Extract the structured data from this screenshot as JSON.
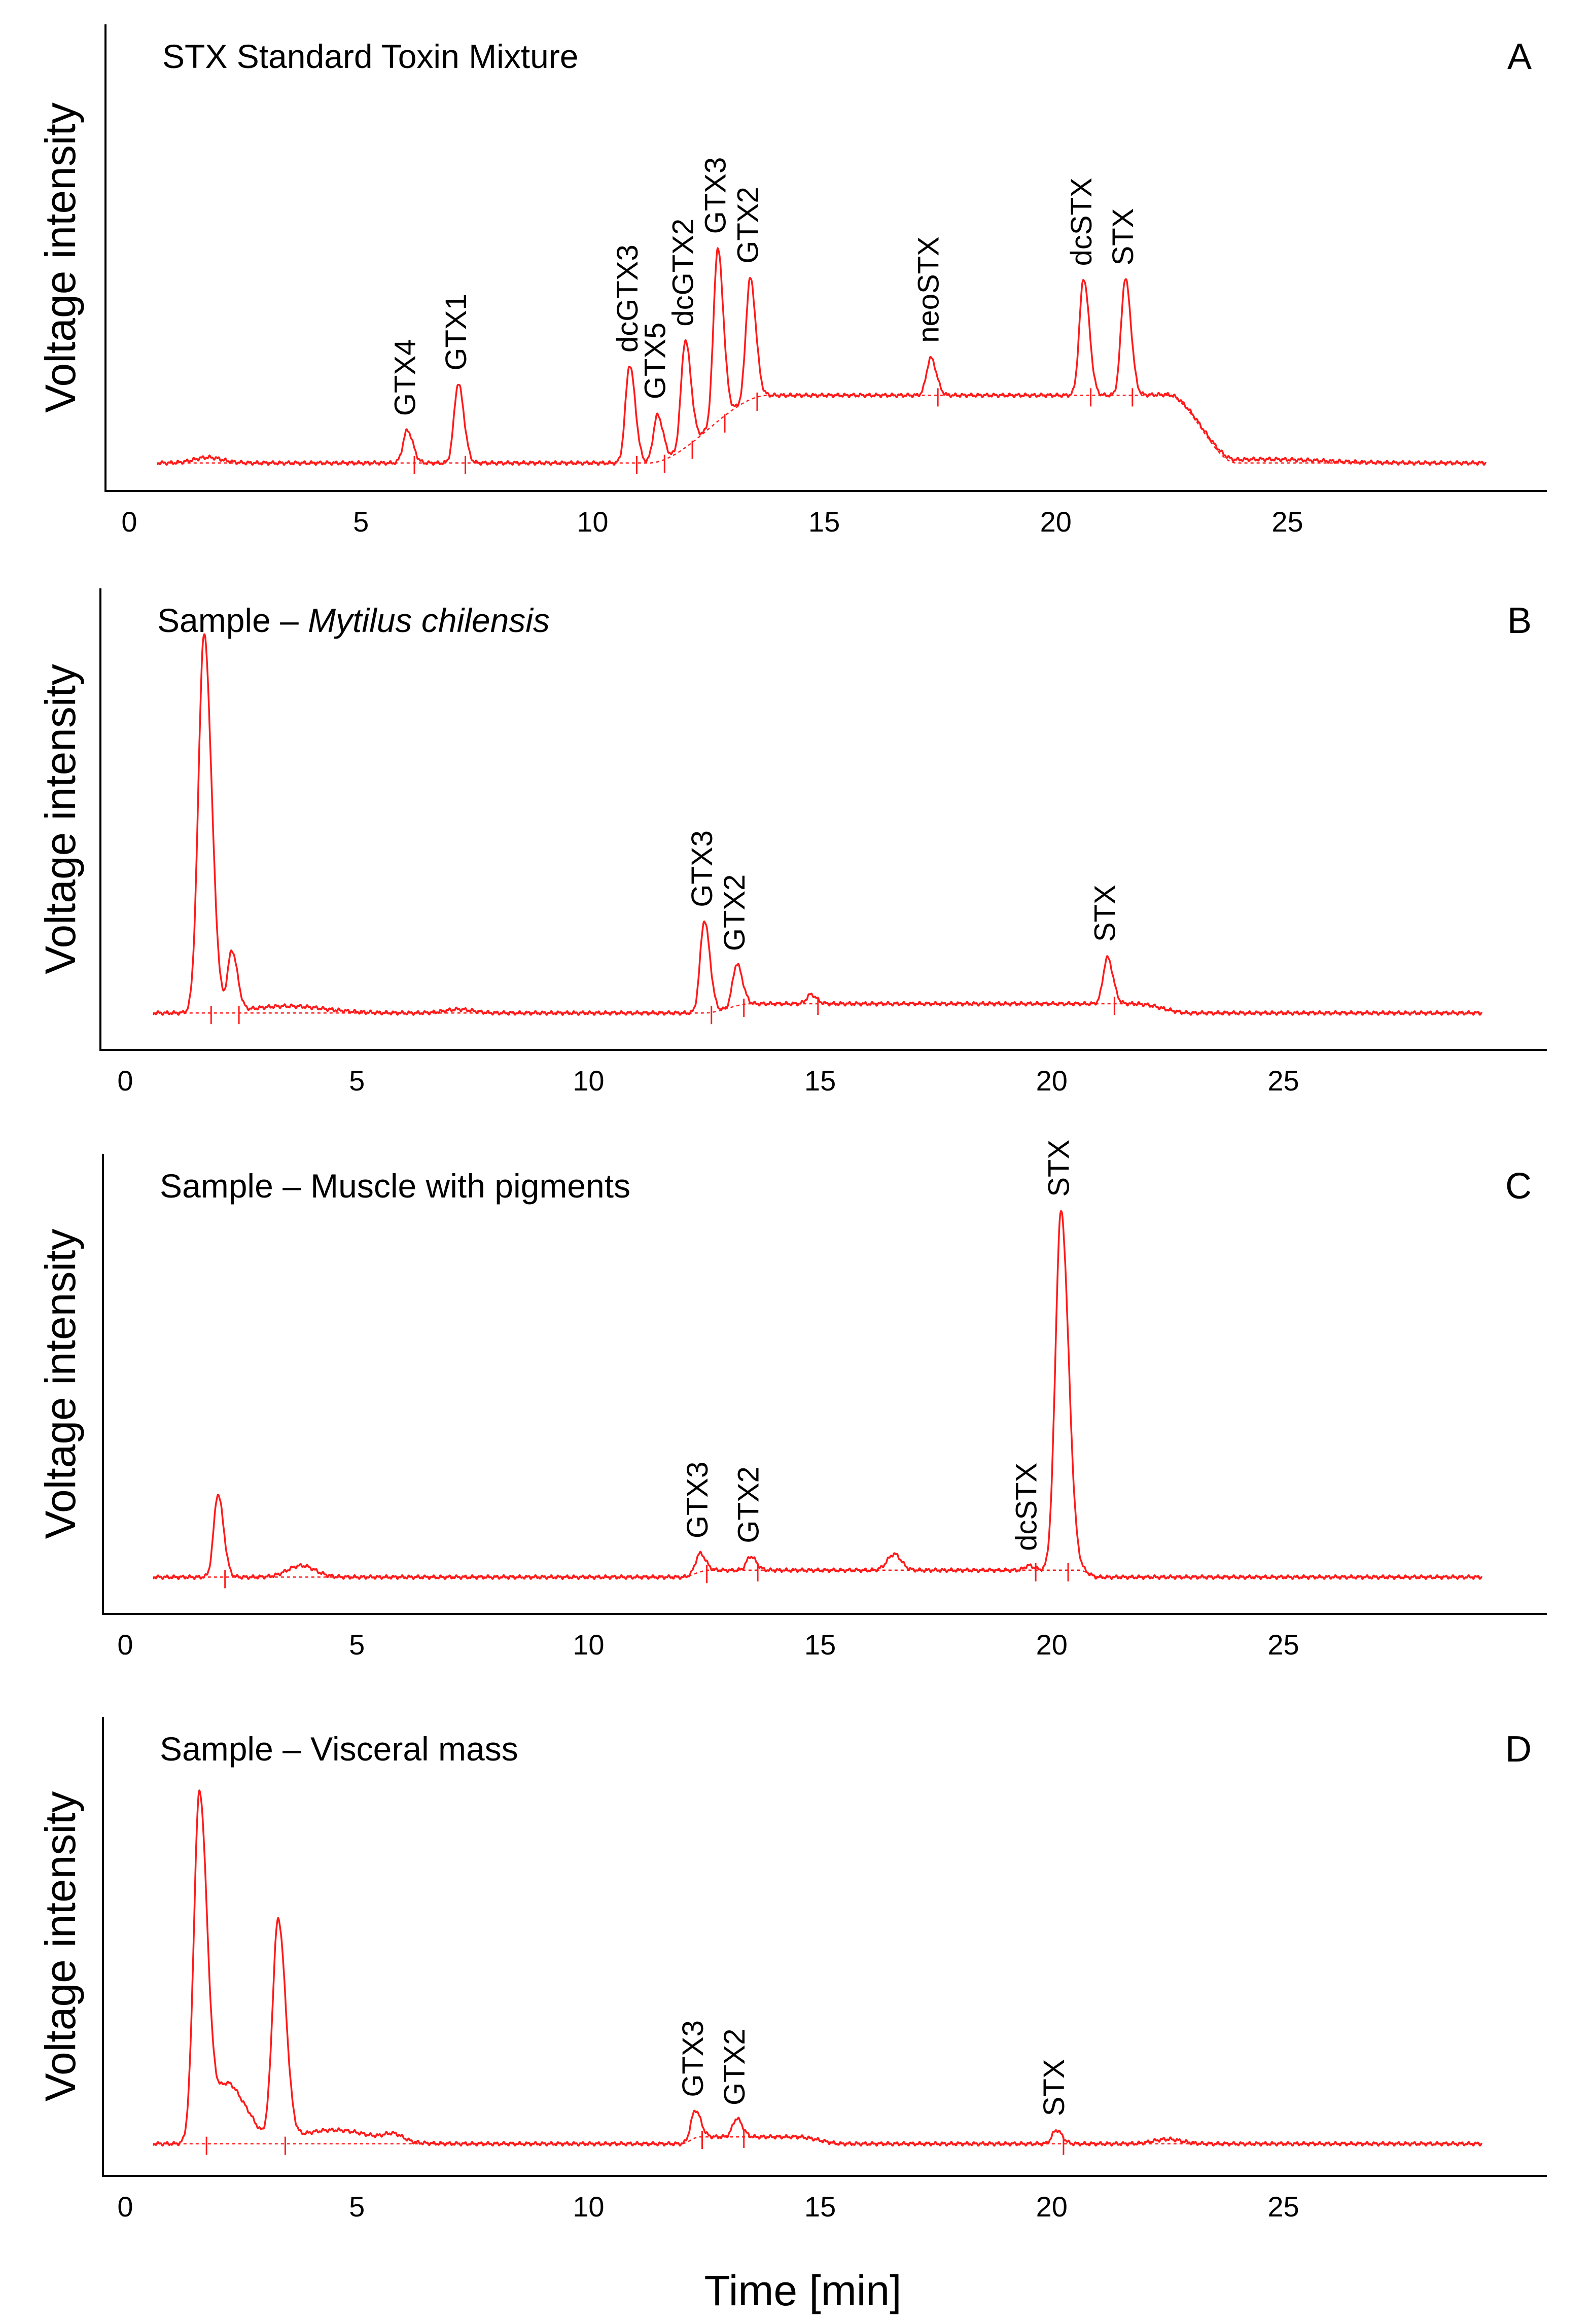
{
  "x_axis_label": "Time [min]",
  "trace_color": "#ff1a1a",
  "chart_data": [
    {
      "type": "line",
      "panel": "A",
      "title_parts": [
        {
          "text": "STX Standard Toxin Mixture",
          "italic": false
        }
      ],
      "ylabel": "Voltage intensity",
      "xlabel": "",
      "xlim": [
        0,
        29.5
      ],
      "ylim": [
        0,
        100
      ],
      "xticks": [
        0,
        5,
        10,
        15,
        20,
        25
      ],
      "baseline": 6,
      "hump": {
        "start": 11.2,
        "plateau_start": 13.8,
        "end": 22.4,
        "plateau_end": 23.9,
        "level": 20.5
      },
      "bumps": [
        {
          "x": 1.7,
          "h": 1.2,
          "w": 0.3
        },
        {
          "x": 24.5,
          "h": 0.8,
          "w": 1.2
        }
      ],
      "peaks": [
        {
          "name": "GTX4",
          "rt": 6.0,
          "height": 7
        },
        {
          "name": "GTX1",
          "rt": 7.1,
          "height": 17
        },
        {
          "name": "dcGTX3",
          "rt": 10.8,
          "height": 21
        },
        {
          "name": "GTX5",
          "rt": 11.4,
          "height": 10
        },
        {
          "name": "dcGTX2",
          "rt": 12.0,
          "height": 23
        },
        {
          "name": "GTX3",
          "rt": 12.7,
          "height": 37
        },
        {
          "name": "GTX2",
          "rt": 13.4,
          "height": 26
        },
        {
          "name": "neoSTX",
          "rt": 17.3,
          "height": 8
        },
        {
          "name": "dcSTX",
          "rt": 20.6,
          "height": 25
        },
        {
          "name": "STX",
          "rt": 21.5,
          "height": 25
        }
      ]
    },
    {
      "type": "line",
      "panel": "B",
      "title_parts": [
        {
          "text": "Sample – ",
          "italic": false
        },
        {
          "text": "Mytilus chilensis",
          "italic": true
        }
      ],
      "ylabel": "Voltage intensity",
      "xlabel": "",
      "xlim": [
        0,
        29.5
      ],
      "ylim": [
        0,
        100
      ],
      "xticks": [
        0,
        5,
        10,
        15,
        20,
        25
      ],
      "baseline": 8,
      "hump": {
        "start": 12.5,
        "plateau_start": 13.5,
        "end": 21.8,
        "plateau_end": 23.0,
        "level": 10
      },
      "bumps": [
        {
          "x": 3.5,
          "h": 1.5,
          "w": 0.8
        },
        {
          "x": 7.2,
          "h": 0.8,
          "w": 0.3
        }
      ],
      "peaks": [
        {
          "name": "",
          "rt": 1.7,
          "height": 82
        },
        {
          "name": "",
          "rt": 2.3,
          "height": 13
        },
        {
          "name": "GTX3",
          "rt": 12.5,
          "height": 20
        },
        {
          "name": "GTX2",
          "rt": 13.2,
          "height": 9
        },
        {
          "name": "",
          "rt": 14.8,
          "height": 2
        },
        {
          "name": "STX",
          "rt": 21.2,
          "height": 10
        }
      ]
    },
    {
      "type": "line",
      "panel": "C",
      "title_parts": [
        {
          "text": "Sample – Muscle with pigments",
          "italic": false
        }
      ],
      "ylabel": "Voltage intensity",
      "xlabel": "",
      "xlim": [
        0,
        29.5
      ],
      "ylim": [
        0,
        100
      ],
      "xticks": [
        0,
        5,
        10,
        15,
        20,
        25
      ],
      "baseline": 8,
      "hump": {
        "start": 12.0,
        "plateau_start": 12.6,
        "end": 20.6,
        "plateau_end": 21.0,
        "level": 9.5
      },
      "bumps": [
        {
          "x": 3.8,
          "h": 2.5,
          "w": 0.3
        },
        {
          "x": 16.6,
          "h": 3.5,
          "w": 0.15
        }
      ],
      "peaks": [
        {
          "name": "",
          "rt": 2.0,
          "height": 18
        },
        {
          "name": "GTX3",
          "rt": 12.4,
          "height": 4
        },
        {
          "name": "GTX2",
          "rt": 13.5,
          "height": 3
        },
        {
          "name": "dcSTX",
          "rt": 19.5,
          "height": 1
        },
        {
          "name": "STX",
          "rt": 20.2,
          "height": 78
        }
      ]
    },
    {
      "type": "line",
      "panel": "D",
      "title_parts": [
        {
          "text": "Sample – Visceral mass",
          "italic": false
        }
      ],
      "ylabel": "Voltage intensity",
      "xlabel": "Time [min]",
      "xlim": [
        0,
        29.5
      ],
      "ylim": [
        0,
        100
      ],
      "xticks": [
        0,
        5,
        10,
        15,
        20,
        25
      ],
      "baseline": 7,
      "hump": {
        "start": 12.0,
        "plateau_start": 12.4,
        "end": 14.5,
        "plateau_end": 15.5,
        "level": 8.5
      },
      "bumps": [
        {
          "x": 2.2,
          "h": 13,
          "w": 0.3
        },
        {
          "x": 2.7,
          "h": 3,
          "w": 0.2
        },
        {
          "x": 4.5,
          "h": 3,
          "w": 0.8
        },
        {
          "x": 5.8,
          "h": 1.5,
          "w": 0.2
        },
        {
          "x": 22.5,
          "h": 1,
          "w": 0.3
        }
      ],
      "peaks": [
        {
          "name": "",
          "rt": 1.6,
          "height": 75
        },
        {
          "name": "",
          "rt": 3.3,
          "height": 48
        },
        {
          "name": "GTX3",
          "rt": 12.3,
          "height": 6
        },
        {
          "name": "GTX2",
          "rt": 13.2,
          "height": 4
        },
        {
          "name": "STX",
          "rt": 20.1,
          "height": 3
        }
      ]
    }
  ]
}
